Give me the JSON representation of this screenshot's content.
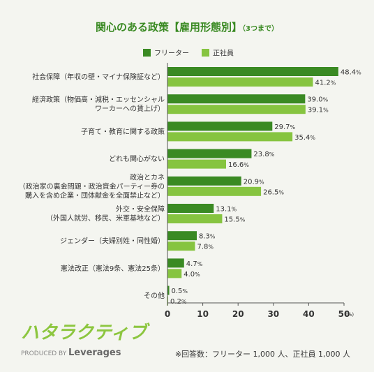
{
  "chart_data": {
    "type": "bar",
    "orientation": "horizontal",
    "title": "関心のある政策【雇用形態別】",
    "subtitle": "（3つまで）",
    "categories": [
      [
        "社会保障（年収の壁・マイナ保険証など）"
      ],
      [
        "経済政策（物価高・減税・エッセンシャル",
        "ワーカーへの賃上げ）"
      ],
      [
        "子育て・教育に関する政策"
      ],
      [
        "どれも関心がない"
      ],
      [
        "政治とカネ",
        "（政治家の裏金問題・政治資金パーティー券の",
        "購入を含め企業・団体献金を全面禁止など）"
      ],
      [
        "外交・安全保障",
        "（外国人就労、移民、米軍基地など）"
      ],
      [
        "ジェンダー（夫婦別姓・同性婚）"
      ],
      [
        "憲法改正（憲法9条、憲法25条）"
      ],
      [
        "その他"
      ]
    ],
    "series": [
      {
        "name": "フリーター",
        "color": "#3a8a23",
        "values": [
          48.4,
          39.0,
          29.7,
          23.8,
          20.9,
          13.1,
          8.3,
          4.7,
          0.5
        ]
      },
      {
        "name": "正社員",
        "color": "#86c440",
        "values": [
          41.2,
          39.1,
          35.4,
          16.6,
          26.5,
          15.5,
          7.8,
          4.0,
          0.2
        ]
      }
    ],
    "value_unit": "%",
    "xlim": [
      0,
      50
    ],
    "xticks": [
      "0",
      "10",
      "20",
      "30",
      "40",
      "50"
    ],
    "x_unit_label": "(%)",
    "legend_position": "top-center",
    "grid": false
  },
  "brand": {
    "logo_text": "ハタラクティブ",
    "produced_by": "PRODUCED BY",
    "company": "Leverages",
    "logo_color": "#8cc63f"
  },
  "footnote": "※回答数：フリーター 1,000 人、正社員 1,000 人",
  "colors": {
    "title": "#3a8a23",
    "axis": "#555555"
  }
}
